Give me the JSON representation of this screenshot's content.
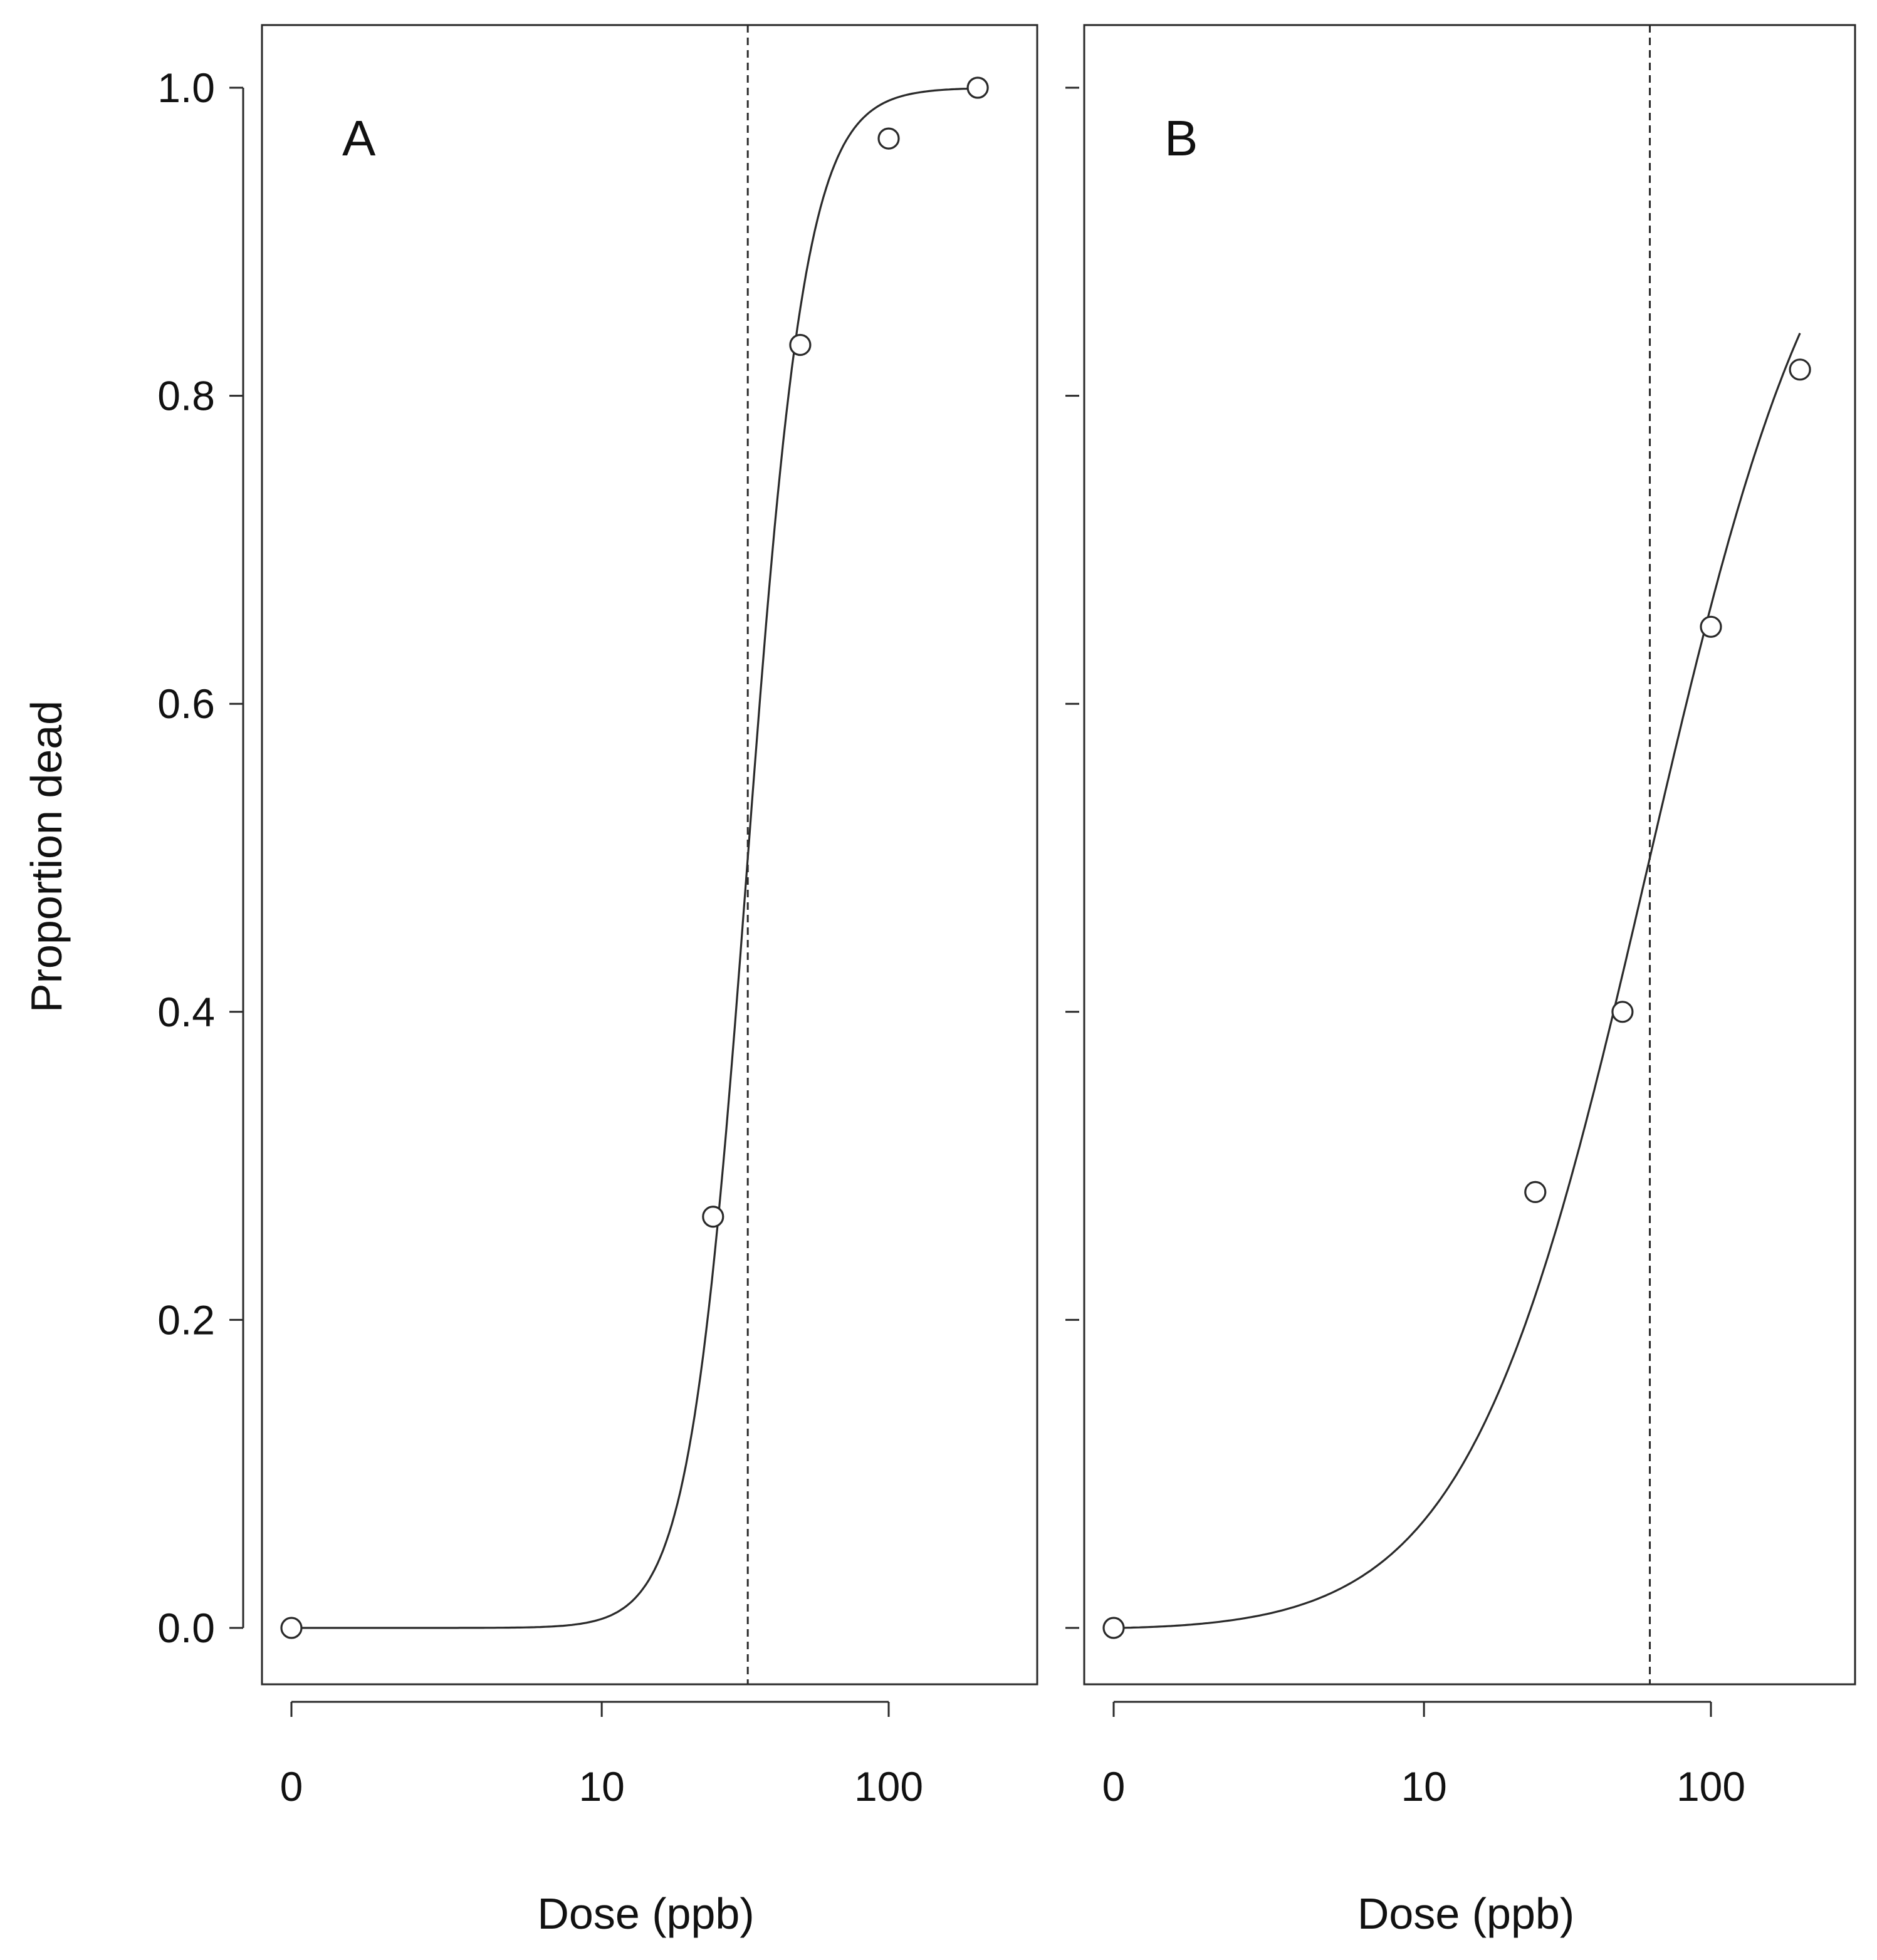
{
  "chart_data": [
    {
      "type": "scatter",
      "panel_label": "A",
      "xlabel": "Dose (ppb)",
      "ylabel": "Proportion dead",
      "x_scale": "log10(dose+1)",
      "x_ticks": [
        0,
        10,
        100
      ],
      "x_tick_labels": [
        "0",
        "10",
        "100"
      ],
      "xlim": [
        0,
        200
      ],
      "ylim": [
        -0.035,
        1.04
      ],
      "y_ticks": [
        0.0,
        0.2,
        0.4,
        0.6,
        0.8,
        1.0
      ],
      "y_tick_labels": [
        "0.0",
        "0.2",
        "0.4",
        "0.6",
        "0.8",
        "1.0"
      ],
      "grid": false,
      "points": {
        "x": [
          0,
          25,
          50,
          100,
          200
        ],
        "y": [
          0.0,
          0.267,
          0.833,
          0.967,
          1.0
        ]
      },
      "fitted_curve": {
        "model": "log-logistic",
        "ed50": 33,
        "slope": 4.3
      },
      "reference_line": {
        "orientation": "vertical",
        "x": 33,
        "style": "dashed"
      }
    },
    {
      "type": "scatter",
      "panel_label": "B",
      "xlabel": "Dose (ppb)",
      "ylabel": "",
      "x_scale": "log10(dose+1)",
      "x_ticks": [
        0,
        10,
        100
      ],
      "x_tick_labels": [
        "0",
        "10",
        "100"
      ],
      "xlim": [
        0,
        200
      ],
      "ylim": [
        -0.035,
        1.04
      ],
      "y_ticks": [
        0.0,
        0.2,
        0.4,
        0.6,
        0.8,
        1.0
      ],
      "y_tick_labels": [
        "",
        "",
        "",
        "",
        "",
        ""
      ],
      "grid": false,
      "points": {
        "x": [
          0,
          25,
          50,
          100,
          200
        ],
        "y": [
          0.0,
          0.283,
          0.4,
          0.65,
          0.817
        ]
      },
      "fitted_curve": {
        "model": "log-logistic",
        "ed50": 62,
        "slope": 1.42
      },
      "reference_line": {
        "orientation": "vertical",
        "x": 62,
        "style": "dashed"
      }
    }
  ]
}
